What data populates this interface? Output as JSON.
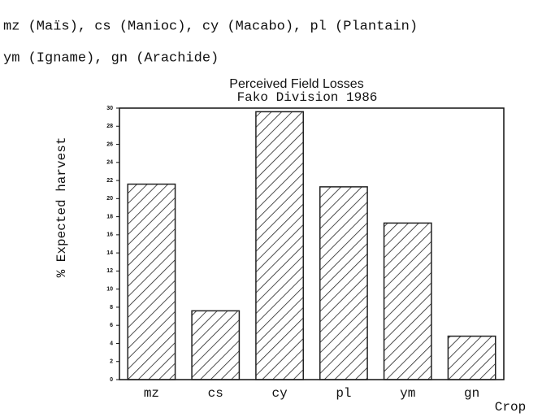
{
  "chart_data": {
    "type": "bar",
    "notes": [
      "mz (Maïs), cs (Manioc), cy (Macabo), pl (Plantain)",
      "ym (Igname), gn (Arachide)"
    ],
    "title": "Perceived Field Losses",
    "subtitle": "Fako Division 1986",
    "y_label": "% Expected harvest",
    "x_label": "Crop",
    "categories": [
      "mz",
      "cs",
      "cy",
      "pl",
      "ym",
      "gn"
    ],
    "values": [
      21.6,
      7.6,
      29.6,
      21.3,
      17.3,
      4.8
    ],
    "color": "#222222",
    "hatch": true,
    "ylim": [
      0,
      30
    ],
    "yticks": [
      0,
      2,
      4,
      6,
      8,
      10,
      12,
      14,
      16,
      18,
      20,
      22,
      24,
      26,
      28,
      30
    ],
    "grid": false
  }
}
